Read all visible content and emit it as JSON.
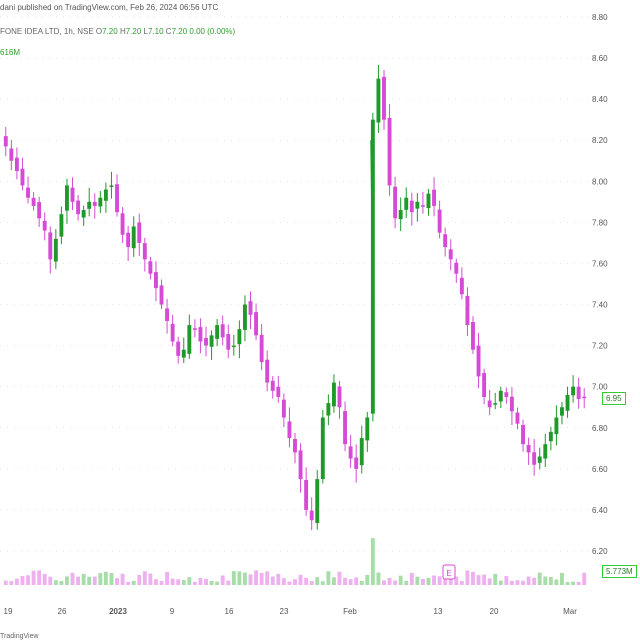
{
  "header": {
    "publisher": "dani published on TradingView.com, Feb 26, 2024 06:56 UTC",
    "symbol": "FONE IDEA LTD, 1h, NSE",
    "open_label": "O",
    "open": "7.20",
    "high_label": "H",
    "high": "7.20",
    "low_label": "L",
    "low": "7.10",
    "close_label": "C",
    "close": "7.20",
    "change": "0.00 (0.00%)",
    "volume": "616M"
  },
  "badges": {
    "last_price": "6.95",
    "last_volume": "5.773M",
    "earnings_marker": "E"
  },
  "footer": {
    "brand": "TradingView"
  },
  "colors": {
    "up": "#1f9a2a",
    "down": "#d64bd6",
    "neutral": "#555555",
    "volume_up": "#a8dca8",
    "volume_down": "#efb0ef",
    "grid_dot": "#cccccc"
  },
  "chart_data": {
    "type": "candlestick",
    "title": "",
    "ylim": [
      6.0,
      8.9
    ],
    "yticks": [
      "8.80",
      "8.60",
      "8.40",
      "8.20",
      "8.00",
      "7.80",
      "7.60",
      "7.40",
      "7.20",
      "7.00",
      "6.80",
      "6.60",
      "6.40",
      "6.20"
    ],
    "xticks": [
      "19",
      "26",
      "2023",
      "9",
      "16",
      "23",
      "Feb",
      "13",
      "20",
      "Mar"
    ],
    "series": [
      {
        "values": [
          8.17,
          8.1,
          8.05,
          7.98,
          7.92,
          7.88,
          7.82,
          7.76,
          7.62,
          7.72,
          7.84,
          7.98,
          7.9,
          7.84,
          7.86,
          7.9,
          7.88,
          7.92,
          7.96,
          7.98,
          7.85,
          7.74,
          7.68,
          7.78,
          7.7,
          7.62,
          7.55,
          7.48,
          7.4,
          7.32,
          7.22,
          7.15,
          7.18,
          7.3,
          7.28,
          7.22,
          7.2,
          7.25,
          7.3,
          7.24,
          7.18,
          7.2,
          7.28,
          7.4,
          7.35,
          7.25,
          7.12,
          7.02,
          6.98,
          6.95,
          6.85,
          6.75,
          6.68,
          6.55,
          6.4,
          6.35,
          6.55,
          6.85,
          6.92,
          7.02,
          6.9,
          6.72,
          6.65,
          6.6,
          6.75,
          6.85,
          8.3,
          8.5,
          8.3,
          7.98,
          7.82,
          7.86,
          7.92,
          7.85,
          7.9,
          7.88,
          7.94,
          7.88,
          7.75,
          7.68,
          7.62,
          7.55,
          7.45,
          7.3,
          7.18,
          7.05,
          6.95,
          6.9,
          6.92,
          6.98,
          6.95,
          6.88,
          6.82,
          6.72,
          6.68,
          6.62,
          6.66,
          6.72,
          6.78,
          6.85,
          6.9,
          6.96,
          7.0,
          6.94,
          6.95
        ]
      }
    ]
  }
}
